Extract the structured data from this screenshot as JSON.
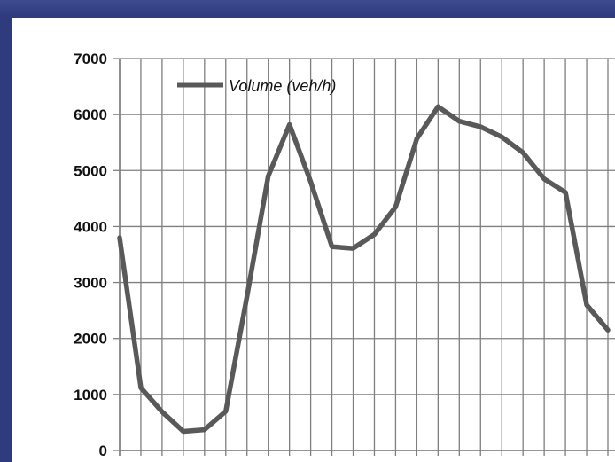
{
  "chart_data": {
    "type": "line",
    "title": "",
    "xlabel": "",
    "ylabel": "",
    "ylim": [
      0,
      7000
    ],
    "yticks": [
      "0",
      "1000",
      "2000",
      "3000",
      "4000",
      "5000",
      "6000",
      "7000"
    ],
    "grid": true,
    "legend_position": "top-left",
    "x": [
      0,
      1,
      2,
      3,
      4,
      5,
      6,
      7,
      8,
      9,
      10,
      11,
      12,
      13,
      14,
      15,
      16,
      17,
      18,
      19,
      20,
      21,
      22,
      23
    ],
    "series": [
      {
        "name": "Volume (veh/h)",
        "color": "#595959",
        "values": [
          3800,
          1120,
          690,
          340,
          370,
          700,
          2750,
          4900,
          5820,
          4800,
          3640,
          3610,
          3860,
          4350,
          5570,
          6140,
          5880,
          5780,
          5600,
          5320,
          4850,
          4610,
          2600,
          2150
        ]
      }
    ]
  },
  "colors": {
    "background": "#2e3c7e",
    "panel": "#ffffff",
    "grid": "#7f7f7f",
    "line": "#595959"
  }
}
